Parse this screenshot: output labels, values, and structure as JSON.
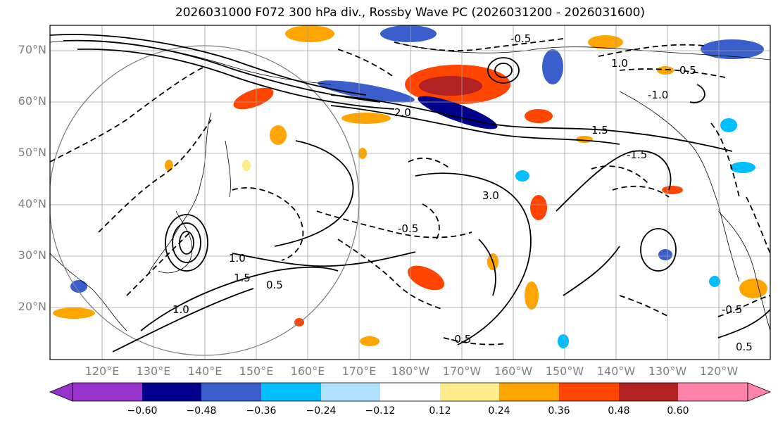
{
  "title": "2026031000 F072 300 hPa div., Rossby Wave PC (2026031200 - 2026031600)",
  "map": {
    "lat_labels": [
      "70°N",
      "60°N",
      "50°N",
      "40°N",
      "30°N",
      "20°N"
    ],
    "lon_labels": [
      "120°E",
      "130°E",
      "140°E",
      "150°E",
      "160°E",
      "170°E",
      "180°W",
      "170°W",
      "160°W",
      "150°W",
      "140°W",
      "130°W",
      "120°W"
    ],
    "contour_labels": [
      "-0.5",
      "1.0",
      "0.5",
      "-1.0",
      "1.5",
      "-1.5",
      "3.0",
      "2.0",
      "-0.5",
      "1.0",
      "0.5",
      "-0.5",
      "1.0",
      "1.5",
      "0.5",
      "-0.5"
    ]
  },
  "colorbar": {
    "tick_labels": [
      "−0.60",
      "−0.48",
      "−0.36",
      "−0.24",
      "−0.12",
      "0.12",
      "0.24",
      "0.36",
      "0.48",
      "0.60"
    ],
    "colors": [
      "#9932cc",
      "#00008b",
      "#3a5fcd",
      "#00bfff",
      "#b0e2ff",
      "#ffffff",
      "#ffec8b",
      "#ffa500",
      "#ff4500",
      "#b22222",
      "#ff82ab"
    ]
  }
}
